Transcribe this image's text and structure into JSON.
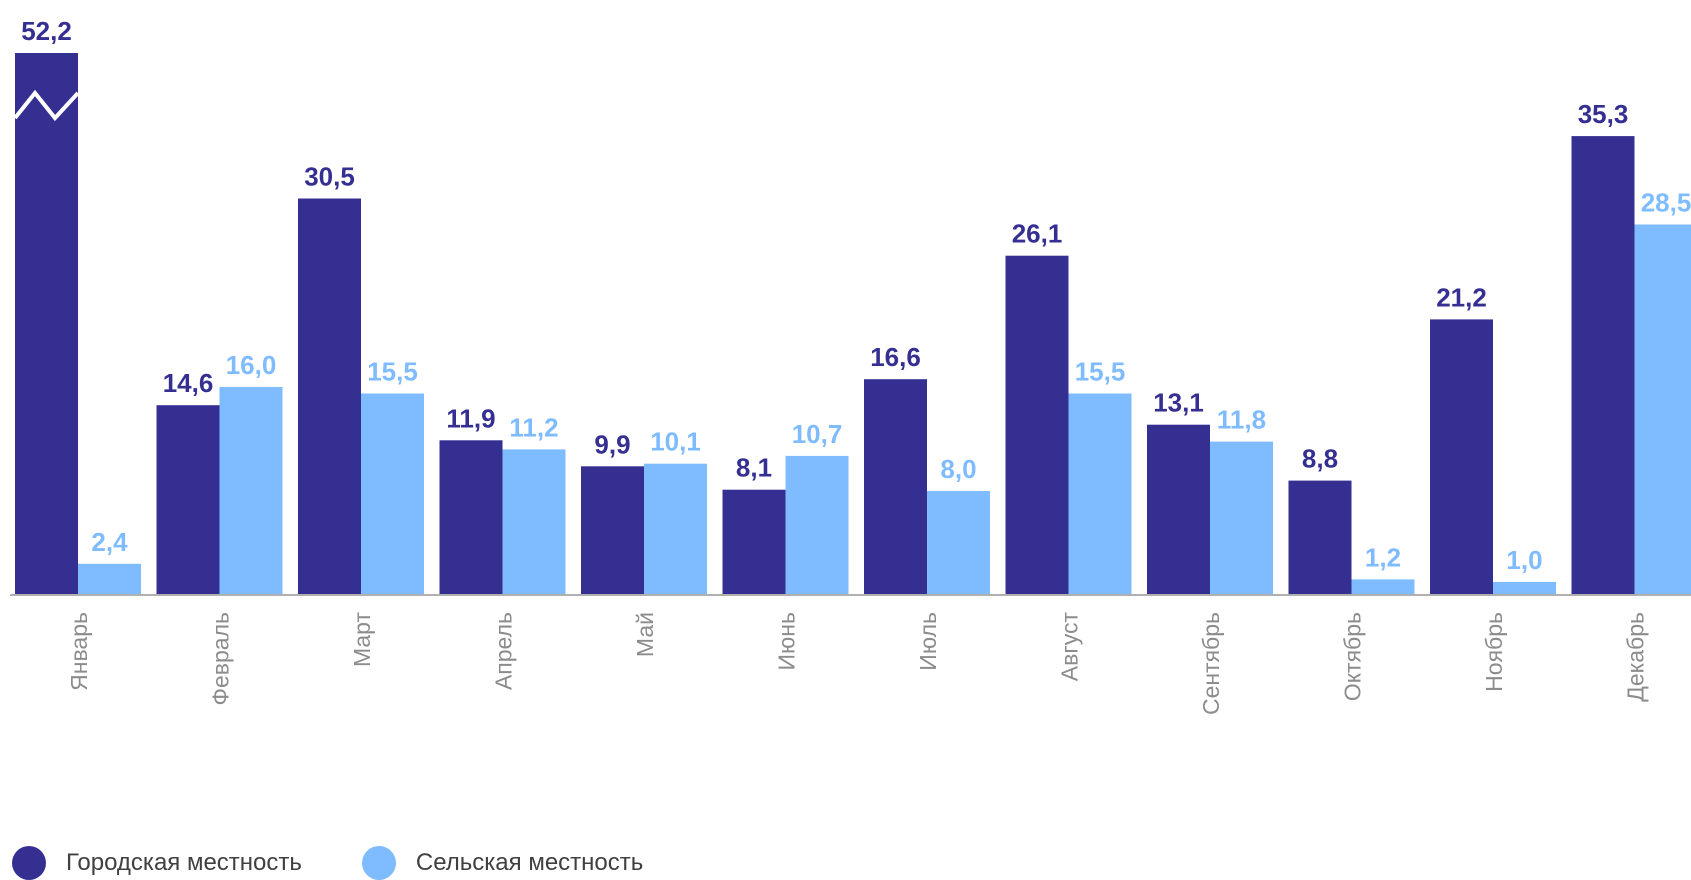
{
  "colors": {
    "urban": "#352f92",
    "rural": "#7fbcff",
    "axis": "#b0b0b0",
    "category_label": "#8c8c8c"
  },
  "legend": [
    {
      "label": "Городская местность",
      "color": "#352f92"
    },
    {
      "label": "Сельская местность",
      "color": "#7fbcff"
    }
  ],
  "chart_data": {
    "type": "bar",
    "title": "",
    "xlabel": "",
    "ylabel": "",
    "categories": [
      "Январь",
      "Февраль",
      "Март",
      "Апрель",
      "Май",
      "Июнь",
      "Июль",
      "Август",
      "Сентябрь",
      "Октябрь",
      "Ноябрь",
      "Декабрь"
    ],
    "series": [
      {
        "name": "Городская местность",
        "values": [
          52.2,
          14.6,
          30.5,
          11.9,
          9.9,
          8.1,
          16.6,
          26.1,
          13.1,
          8.8,
          21.2,
          35.3
        ],
        "labels": [
          "52,2",
          "14,6",
          "30,5",
          "11,9",
          "9,9",
          "8,1",
          "16,6",
          "26,1",
          "13,1",
          "8,8",
          "21,2",
          "35,3"
        ]
      },
      {
        "name": "Сельская местность",
        "values": [
          2.4,
          16.0,
          15.5,
          11.2,
          10.1,
          10.7,
          8.0,
          15.5,
          11.8,
          1.2,
          1.0,
          28.5
        ],
        "labels": [
          "2,4",
          "16,0",
          "15,5",
          "11,2",
          "10,1",
          "10,7",
          "8,0",
          "15,5",
          "11,8",
          "1,2",
          "1,0",
          "28,5"
        ]
      }
    ],
    "axis_break": {
      "category": "Январь",
      "series": "Городская местность"
    },
    "ylim": [
      0,
      40
    ],
    "grid": false,
    "legend_position": "bottom-left"
  }
}
